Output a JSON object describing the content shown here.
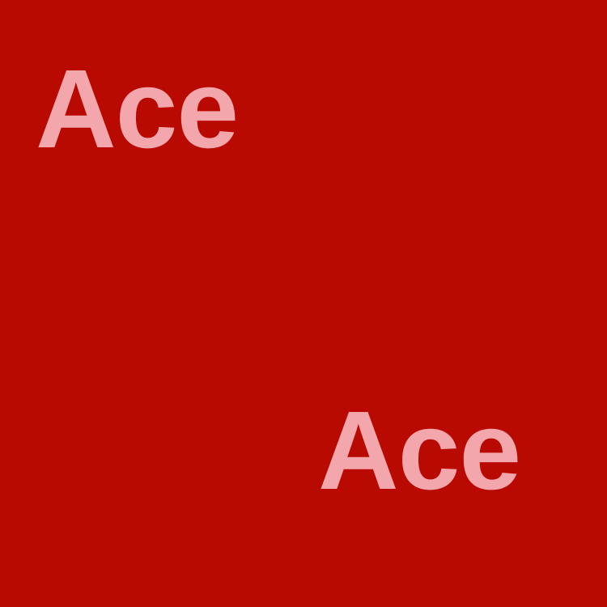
{
  "background_color": "#b80a00",
  "text_color": "#f4a6ad",
  "words": [
    {
      "text": "Ace"
    },
    {
      "text": "Ace"
    }
  ]
}
